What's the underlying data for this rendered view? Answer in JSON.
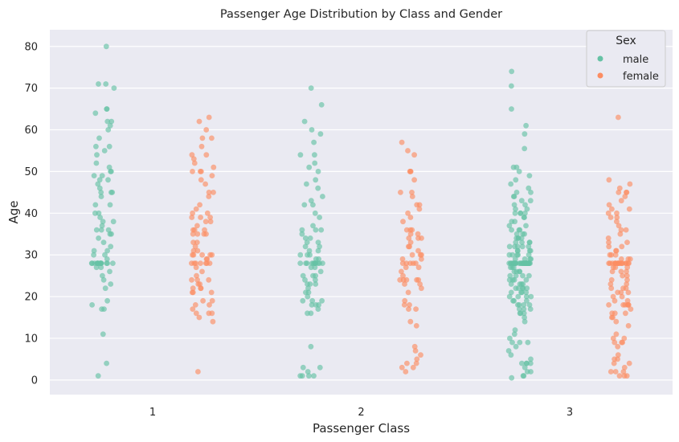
{
  "chart_data": {
    "type": "scatter",
    "title": "Passenger Age Distribution by Class and Gender",
    "xlabel": "Passenger Class",
    "ylabel": "Age",
    "categories": [
      "1",
      "2",
      "3"
    ],
    "y_ticks": [
      0,
      10,
      20,
      30,
      40,
      50,
      60,
      70,
      80
    ],
    "ylim": [
      -3.5,
      84
    ],
    "grid": true,
    "legend": {
      "title": "Sex",
      "placement": "top-right"
    },
    "series": [
      {
        "name": "male",
        "color": "#66c2a5",
        "points": {
          "1": [
            80,
            71,
            71,
            70,
            65,
            65,
            64,
            62,
            62,
            61,
            60,
            58,
            56,
            56,
            55,
            54,
            52,
            51,
            50,
            50,
            49,
            49,
            48,
            48,
            47,
            46,
            45,
            45,
            45,
            44,
            42,
            42,
            40,
            40,
            39,
            38,
            38,
            37,
            36,
            36,
            36,
            35,
            35,
            34,
            33,
            32,
            31,
            31,
            30,
            30,
            29,
            28,
            28,
            28,
            28,
            28,
            28,
            28,
            28,
            28,
            28,
            28,
            28,
            28,
            28,
            28,
            27,
            27,
            26,
            25,
            24,
            23,
            22,
            19,
            18,
            17,
            17,
            11,
            4,
            1
          ],
          "2": [
            70,
            66,
            62,
            60,
            59,
            57,
            54,
            54,
            52,
            51,
            50,
            48,
            47,
            46,
            44,
            43,
            42,
            42,
            40,
            39,
            37,
            36,
            36,
            36,
            35,
            34,
            34,
            33,
            33,
            32,
            32,
            31,
            31,
            30,
            30,
            30,
            29,
            29,
            28,
            28,
            28,
            28,
            28,
            28,
            28,
            28,
            28,
            28,
            28,
            27,
            27,
            26,
            25,
            25,
            25,
            24,
            24,
            23,
            23,
            23,
            22,
            21,
            21,
            20,
            19,
            19,
            19,
            18,
            18,
            18,
            17,
            16,
            16,
            8,
            3,
            3,
            2,
            1,
            1,
            1,
            1
          ],
          "3": [
            74,
            70.5,
            65,
            61,
            59,
            55.5,
            51,
            51,
            50,
            49,
            48,
            47,
            46,
            45,
            45,
            44,
            44,
            43,
            43,
            42,
            42,
            41,
            41,
            40,
            40,
            40,
            40,
            39,
            39,
            38,
            38,
            37,
            37,
            36,
            36,
            36,
            35,
            35,
            35,
            34,
            34,
            34,
            34,
            33,
            33,
            33,
            33,
            32,
            32,
            32,
            32,
            32,
            31,
            31,
            31,
            31,
            30,
            30,
            30,
            30,
            30,
            29,
            29,
            29,
            29,
            28,
            28,
            28,
            28,
            28,
            28,
            28,
            28,
            28,
            28,
            28,
            28,
            28,
            28,
            28,
            28,
            28,
            28,
            28,
            28,
            28,
            28,
            28,
            28,
            28,
            28,
            28,
            28,
            28,
            28,
            28,
            28,
            28,
            28,
            28,
            27,
            27,
            27,
            26,
            26,
            26,
            26,
            25,
            25,
            25,
            25,
            24,
            24,
            24,
            24,
            23,
            23,
            23,
            23,
            22,
            22,
            22,
            22,
            22,
            21,
            21,
            21,
            21,
            20,
            20,
            20,
            20,
            19,
            19,
            19,
            18,
            18,
            18,
            18,
            17,
            17,
            17,
            16,
            16,
            16,
            15,
            14,
            12,
            11,
            10,
            9,
            9,
            9,
            8,
            7,
            6,
            5,
            4,
            4,
            4,
            4,
            3,
            2,
            2,
            1,
            1,
            0.5
          ]
        }
      },
      {
        "name": "female",
        "color": "#fc8d62",
        "points": {
          "1": [
            63,
            62,
            60,
            58,
            58,
            56,
            54,
            54,
            53,
            52,
            51,
            50,
            50,
            50,
            49,
            48,
            47,
            45,
            45,
            44,
            42,
            41,
            40,
            40,
            39,
            39,
            39,
            38,
            38,
            37,
            36,
            36,
            36,
            35,
            35,
            35,
            35,
            33,
            33,
            32,
            31,
            31,
            30,
            30,
            30,
            30,
            30,
            29,
            29,
            28,
            28,
            28,
            28,
            28,
            28,
            28,
            27,
            26,
            25,
            24,
            24,
            24,
            23,
            23,
            22,
            22,
            22,
            21,
            21,
            21,
            19,
            19,
            18,
            18,
            17,
            16,
            16,
            16,
            15,
            14,
            2
          ],
          "2": [
            57,
            55,
            54,
            50,
            50,
            50,
            48,
            45,
            45,
            44,
            42,
            42,
            41,
            40,
            39,
            38,
            36,
            36,
            36,
            35,
            35,
            34,
            34,
            34,
            33,
            32,
            32,
            31,
            30,
            30,
            30,
            29,
            29,
            28,
            28,
            28,
            28,
            28,
            27,
            27,
            26,
            25,
            24,
            24,
            24,
            24,
            24,
            23,
            23,
            22,
            21,
            19,
            18,
            18,
            17,
            17,
            14,
            13,
            8,
            7,
            6,
            5,
            4,
            4,
            3,
            3,
            2
          ],
          "3": [
            63,
            48,
            47,
            46,
            45,
            45,
            45,
            44,
            43,
            42,
            41,
            41,
            40,
            40,
            39,
            39,
            38,
            37,
            36,
            36,
            35,
            34,
            33,
            33,
            32,
            32,
            31,
            31,
            30,
            30,
            30,
            29,
            29,
            29,
            28,
            28,
            28,
            28,
            28,
            28,
            28,
            28,
            28,
            28,
            28,
            28,
            28,
            28,
            28,
            28,
            28,
            27,
            27,
            27,
            26,
            26,
            26,
            25,
            25,
            24,
            24,
            23,
            23,
            22,
            22,
            22,
            21,
            21,
            21,
            20,
            20,
            19,
            19,
            18,
            18,
            18,
            18,
            18,
            18,
            17,
            16,
            16,
            16,
            15,
            15,
            14,
            13,
            11,
            10,
            10,
            9,
            9,
            9,
            8,
            6,
            5,
            5,
            4,
            4,
            3,
            2,
            2,
            2,
            1,
            1,
            1
          ]
        }
      }
    ]
  }
}
